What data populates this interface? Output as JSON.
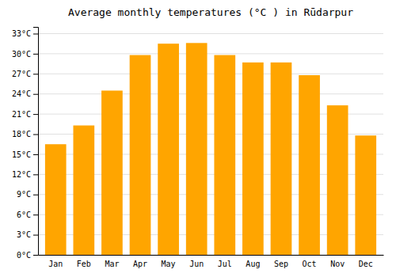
{
  "chart_data": {
    "type": "bar",
    "title": "Average monthly temperatures (°C ) in Rūdarpur",
    "categories": [
      "Jan",
      "Feb",
      "Mar",
      "Apr",
      "May",
      "Jun",
      "Jul",
      "Aug",
      "Sep",
      "Oct",
      "Nov",
      "Dec"
    ],
    "values": [
      16.5,
      19.3,
      24.5,
      29.8,
      31.5,
      31.6,
      29.8,
      28.7,
      28.7,
      26.8,
      22.3,
      17.8
    ],
    "color": "#FFA500",
    "ylim": [
      0,
      34
    ],
    "yticks": [
      {
        "value": 0,
        "label": "0°C"
      },
      {
        "value": 3,
        "label": "3°C"
      },
      {
        "value": 6,
        "label": "6°C"
      },
      {
        "value": 9,
        "label": "9°C"
      },
      {
        "value": 12,
        "label": "12°C"
      },
      {
        "value": 15,
        "label": "15°C"
      },
      {
        "value": 18,
        "label": "18°C"
      },
      {
        "value": 21,
        "label": "21°C"
      },
      {
        "value": 24,
        "label": "24°C"
      },
      {
        "value": 27,
        "label": "27°C"
      },
      {
        "value": 30,
        "label": "30°C"
      },
      {
        "value": 33,
        "label": "33°C"
      }
    ],
    "grid": true
  }
}
